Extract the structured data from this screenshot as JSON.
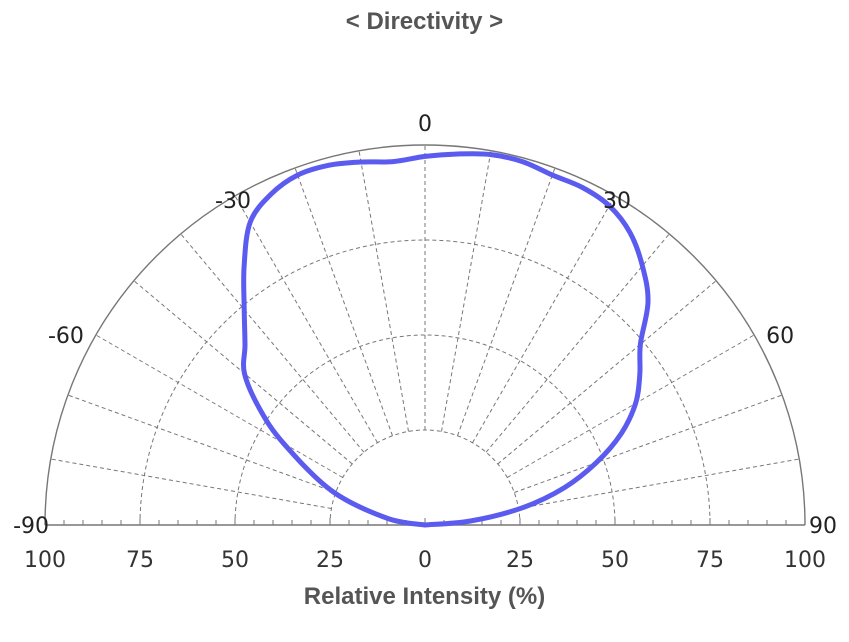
{
  "chart_data": {
    "type": "polar",
    "title": "< Directivity >",
    "xlabel": "Relative Intensity (%)",
    "angle_labels": [
      "-90",
      "-60",
      "-30",
      "0",
      "30",
      "60",
      "90"
    ],
    "angle_values": [
      -90,
      -60,
      -30,
      0,
      30,
      60,
      90
    ],
    "radial_tick_labels": [
      "100",
      "75",
      "50",
      "25",
      "0",
      "25",
      "50",
      "75",
      "100"
    ],
    "radial_ticks": [
      25,
      50,
      75,
      100
    ],
    "radial_range": [
      0,
      100
    ],
    "angle_range": [
      -90,
      90
    ],
    "spoke_step_deg": 10,
    "grid": true,
    "series": [
      {
        "color": "#5b5bf0",
        "points": [
          [
            -90,
            0
          ],
          [
            -80,
            10
          ],
          [
            -70,
            26
          ],
          [
            -60,
            43
          ],
          [
            -55,
            53
          ],
          [
            -50,
            62
          ],
          [
            -45,
            67
          ],
          [
            -40,
            74
          ],
          [
            -35,
            83
          ],
          [
            -30,
            92
          ],
          [
            -25,
            96
          ],
          [
            -20,
            98
          ],
          [
            -15,
            98
          ],
          [
            -10,
            97
          ],
          [
            -5,
            96
          ],
          [
            0,
            97
          ],
          [
            5,
            98
          ],
          [
            10,
            99
          ],
          [
            15,
            99
          ],
          [
            20,
            98
          ],
          [
            25,
            98
          ],
          [
            30,
            97
          ],
          [
            35,
            94
          ],
          [
            40,
            89
          ],
          [
            45,
            83
          ],
          [
            50,
            74
          ],
          [
            55,
            69
          ],
          [
            60,
            64
          ],
          [
            65,
            57
          ],
          [
            70,
            48
          ],
          [
            75,
            38
          ],
          [
            80,
            26
          ],
          [
            85,
            12
          ],
          [
            90,
            0
          ]
        ]
      }
    ]
  }
}
